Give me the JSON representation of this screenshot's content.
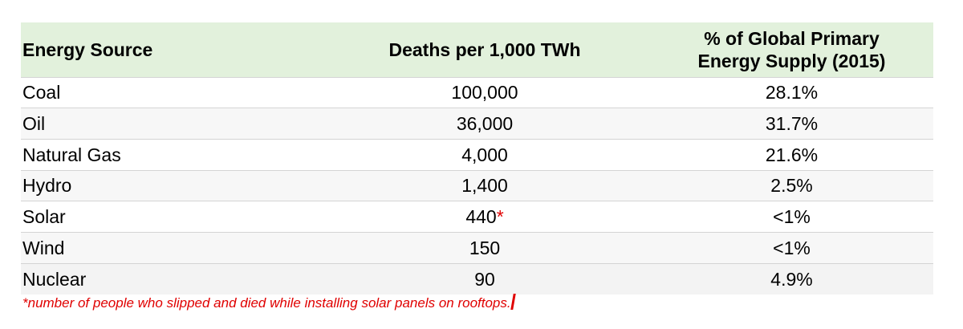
{
  "table": {
    "headers": {
      "source": "Energy Source",
      "deaths": "Deaths per 1,000 TWh",
      "share": "% of Global Primary Energy Supply (2015)"
    },
    "rows": [
      {
        "source": "Coal",
        "deaths": "100,000",
        "marker": "",
        "share": "28.1%"
      },
      {
        "source": "Oil",
        "deaths": "36,000",
        "marker": "",
        "share": "31.7%"
      },
      {
        "source": "Natural Gas",
        "deaths": "4,000",
        "marker": "",
        "share": "21.6%"
      },
      {
        "source": "Hydro",
        "deaths": "1,400",
        "marker": "",
        "share": "2.5%"
      },
      {
        "source": "Solar",
        "deaths": "440",
        "marker": "*",
        "share": "<1%"
      },
      {
        "source": "Wind",
        "deaths": "150",
        "marker": "",
        "share": "<1%"
      },
      {
        "source": "Nuclear",
        "deaths": "90",
        "marker": "",
        "share": "4.9%"
      }
    ]
  },
  "footnote": "*number of people who slipped and died while installing solar panels on rooftops.",
  "colors": {
    "header_bg": "#e2f1dc",
    "footnote": "#e00000"
  }
}
